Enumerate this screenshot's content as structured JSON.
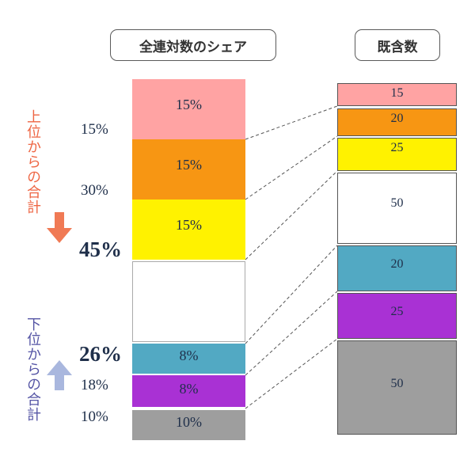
{
  "headers": {
    "left": "全連対数のシェア",
    "right": "既含数"
  },
  "captions": {
    "top": "上位からの合計",
    "bottom": "下位からの合計",
    "top_color": "#ee6644",
    "bottom_color": "#5555a5"
  },
  "left_segments": [
    {
      "label": "15%",
      "color": "#ffa3a3"
    },
    {
      "label": "15%",
      "color": "#f79613"
    },
    {
      "label": "15%",
      "color": "#fff200"
    },
    {
      "label": "",
      "color": "#ffffff"
    },
    {
      "label": "8%",
      "color": "#52a9c3"
    },
    {
      "label": "8%",
      "color": "#a931d4"
    },
    {
      "label": "10%",
      "color": "#9e9e9e"
    }
  ],
  "right_segments": [
    {
      "label": "15",
      "color": "#ffa3a3"
    },
    {
      "label": "20",
      "color": "#f79613"
    },
    {
      "label": "25",
      "color": "#fff200"
    },
    {
      "label": "50",
      "color": "#ffffff"
    },
    {
      "label": "20",
      "color": "#52a9c3"
    },
    {
      "label": "25",
      "color": "#a931d4"
    },
    {
      "label": "50",
      "color": "#9e9e9e"
    }
  ],
  "cumulative_labels": {
    "top_15": "15%",
    "top_30": "30%",
    "top_45": "45%",
    "bottom_26": "26%",
    "bottom_18": "18%",
    "bottom_10": "10%"
  },
  "arrows": {
    "down_color": "#f07a55",
    "up_color": "#a9b7de"
  }
}
